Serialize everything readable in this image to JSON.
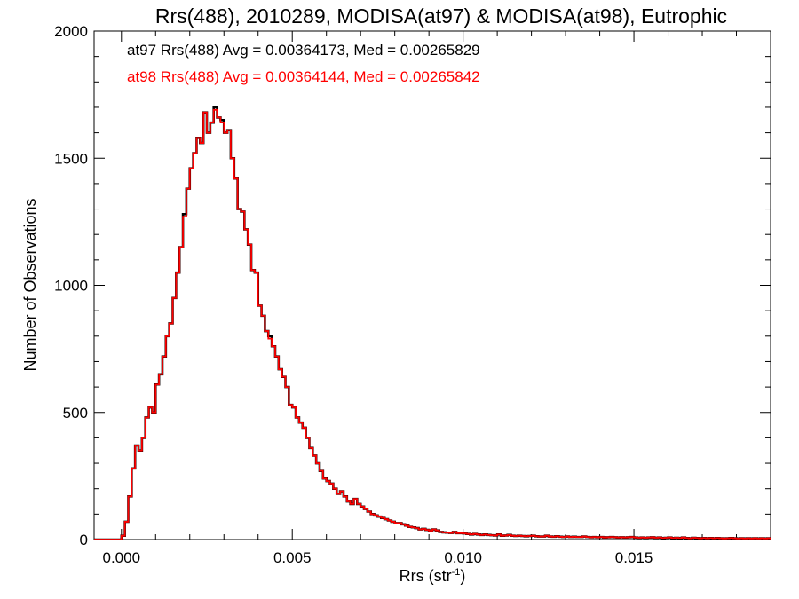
{
  "chart_data": {
    "type": "line",
    "title": "Rrs(488), 2010289, MODISA(at97) & MODISA(at98), Eutrophic",
    "xlabel": "Rrs (str",
    "xlabel_sup": "-1",
    "xlabel_end": ")",
    "ylabel": "Number of Observations",
    "xlim": [
      -0.0008,
      0.019
    ],
    "ylim": [
      0,
      2000
    ],
    "xticks": [
      0.0,
      0.005,
      0.01,
      0.015
    ],
    "xtick_labels": [
      "0.000",
      "0.005",
      "0.010",
      "0.015"
    ],
    "yticks": [
      0,
      500,
      1000,
      1500,
      2000
    ],
    "ytick_labels": [
      "0",
      "500",
      "1000",
      "1500",
      "2000"
    ],
    "grid": false,
    "legend_placement": "top-left",
    "bin_width": 0.0001,
    "x_start": 0.0,
    "series": [
      {
        "name": "at97 Rrs(488) Avg = 0.00364173, Med = 0.00265829",
        "color": "#000000",
        "values": [
          15,
          70,
          170,
          280,
          370,
          350,
          400,
          480,
          520,
          500,
          610,
          650,
          720,
          800,
          850,
          950,
          1050,
          1150,
          1280,
          1380,
          1460,
          1520,
          1580,
          1560,
          1680,
          1600,
          1640,
          1700,
          1660,
          1650,
          1600,
          1610,
          1500,
          1420,
          1300,
          1290,
          1220,
          1160,
          1060,
          1050,
          920,
          880,
          820,
          800,
          760,
          720,
          670,
          640,
          600,
          530,
          520,
          480,
          460,
          440,
          400,
          360,
          330,
          300,
          270,
          240,
          230,
          220,
          200,
          180,
          190,
          170,
          150,
          140,
          160,
          140,
          130,
          120,
          110,
          100,
          95,
          90,
          85,
          80,
          75,
          70,
          65,
          65,
          60,
          55,
          50,
          48,
          45,
          40,
          42,
          38,
          35,
          40,
          36,
          30,
          28,
          27,
          26,
          30,
          25,
          25,
          24,
          22,
          20,
          22,
          20,
          18,
          20,
          18,
          17,
          16,
          20,
          15,
          16,
          18,
          15,
          14,
          15,
          14,
          13,
          14,
          15,
          13,
          12,
          12,
          15,
          12,
          11,
          13,
          11,
          10,
          12,
          10,
          11,
          10,
          10,
          12,
          10,
          9,
          10,
          9,
          10,
          8,
          9,
          10,
          9,
          8,
          9,
          8,
          9,
          10,
          8,
          7,
          8,
          7,
          8,
          9,
          7,
          8,
          6,
          7,
          8,
          6,
          7,
          6,
          8,
          6,
          5,
          7,
          6,
          5,
          6,
          5,
          6,
          5,
          6,
          5,
          4,
          5,
          6,
          5,
          4,
          5,
          4,
          5,
          4,
          5,
          4,
          5,
          4,
          5,
          4,
          3,
          4
        ]
      },
      {
        "name": "at98 Rrs(488) Avg = 0.00364144, Med = 0.00265842",
        "color": "#ff0000",
        "values": [
          15,
          70,
          170,
          280,
          370,
          350,
          400,
          480,
          520,
          500,
          610,
          650,
          720,
          800,
          850,
          950,
          1050,
          1150,
          1270,
          1380,
          1460,
          1520,
          1580,
          1560,
          1680,
          1600,
          1640,
          1690,
          1660,
          1640,
          1600,
          1610,
          1500,
          1420,
          1300,
          1290,
          1220,
          1160,
          1060,
          1050,
          920,
          880,
          820,
          790,
          760,
          720,
          670,
          640,
          600,
          530,
          520,
          480,
          460,
          440,
          400,
          360,
          330,
          300,
          270,
          240,
          230,
          220,
          200,
          180,
          190,
          170,
          150,
          140,
          160,
          140,
          130,
          120,
          110,
          100,
          95,
          90,
          85,
          80,
          75,
          70,
          65,
          65,
          60,
          55,
          50,
          48,
          45,
          40,
          42,
          38,
          35,
          40,
          36,
          30,
          28,
          27,
          26,
          30,
          25,
          25,
          24,
          22,
          20,
          22,
          20,
          18,
          20,
          18,
          17,
          16,
          20,
          15,
          16,
          18,
          15,
          14,
          15,
          14,
          13,
          14,
          15,
          13,
          12,
          12,
          15,
          12,
          11,
          13,
          11,
          10,
          12,
          10,
          11,
          10,
          10,
          12,
          10,
          9,
          10,
          9,
          10,
          8,
          9,
          10,
          9,
          8,
          9,
          8,
          9,
          10,
          8,
          7,
          8,
          7,
          8,
          9,
          7,
          8,
          6,
          7,
          8,
          6,
          7,
          6,
          8,
          6,
          5,
          7,
          6,
          5,
          6,
          5,
          6,
          5,
          6,
          5,
          4,
          5,
          6,
          5,
          4,
          5,
          4,
          5,
          4,
          5,
          4,
          5,
          4,
          5,
          4,
          3,
          4
        ]
      }
    ]
  }
}
